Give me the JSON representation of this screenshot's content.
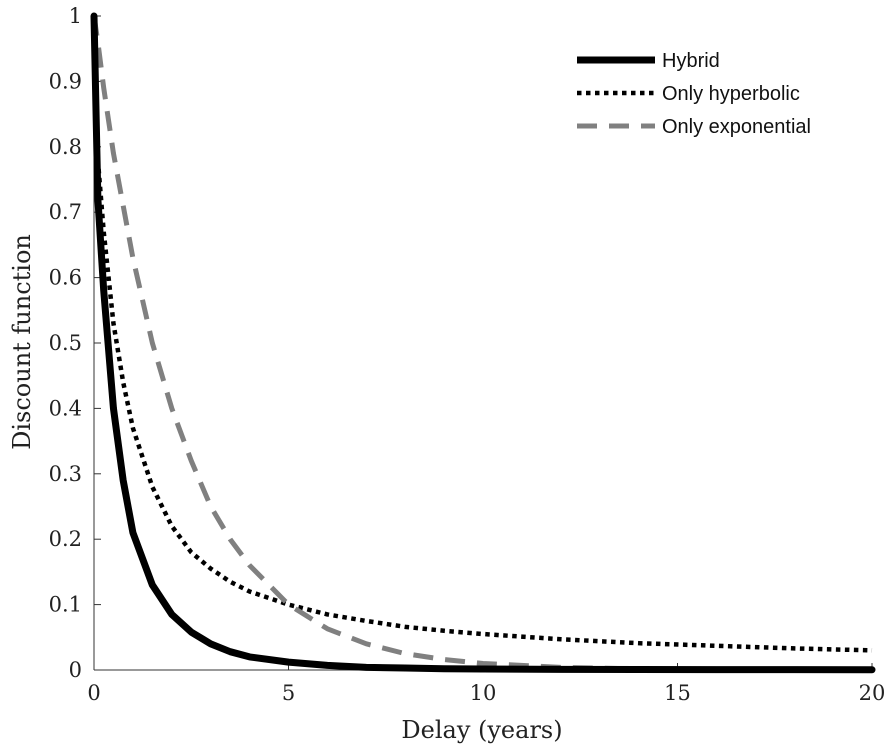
{
  "chart_data": {
    "type": "line",
    "title": "",
    "xlabel": "Delay (years)",
    "ylabel": "Discount function",
    "xlim": [
      0,
      20
    ],
    "ylim": [
      0,
      1
    ],
    "xticks": [
      0,
      5,
      10,
      15,
      20
    ],
    "yticks": [
      0,
      0.1,
      0.2,
      0.3,
      0.4,
      0.5,
      0.6,
      0.7,
      0.8,
      0.9,
      1
    ],
    "grid": false,
    "legend_position": "top-right",
    "x": [
      0,
      0.1,
      0.25,
      0.5,
      0.75,
      1,
      1.5,
      2,
      2.5,
      3,
      3.5,
      4,
      5,
      6,
      7,
      8,
      9,
      10,
      12,
      14,
      16,
      18,
      20
    ],
    "series": [
      {
        "name": "Hybrid",
        "color": "#000000",
        "style": "solid",
        "values": [
          1.0,
          0.72,
          0.58,
          0.4,
          0.29,
          0.21,
          0.13,
          0.085,
          0.058,
          0.04,
          0.028,
          0.02,
          0.012,
          0.007,
          0.004,
          0.003,
          0.002,
          0.0015,
          0.001,
          0.0008,
          0.0006,
          0.0005,
          0.0004
        ]
      },
      {
        "name": "Only hyperbolic",
        "color": "#000000",
        "style": "dotted",
        "values": [
          1.0,
          0.78,
          0.67,
          0.53,
          0.44,
          0.37,
          0.28,
          0.22,
          0.18,
          0.155,
          0.135,
          0.12,
          0.1,
          0.085,
          0.075,
          0.066,
          0.06,
          0.055,
          0.047,
          0.041,
          0.037,
          0.033,
          0.03
        ]
      },
      {
        "name": "Only exponential",
        "color": "#808080",
        "style": "dashed",
        "values": [
          1.0,
          0.96,
          0.89,
          0.79,
          0.71,
          0.63,
          0.5,
          0.4,
          0.32,
          0.25,
          0.2,
          0.16,
          0.1,
          0.063,
          0.04,
          0.025,
          0.016,
          0.01,
          0.004,
          0.0016,
          0.0006,
          0.0003,
          0.0001
        ]
      }
    ]
  }
}
